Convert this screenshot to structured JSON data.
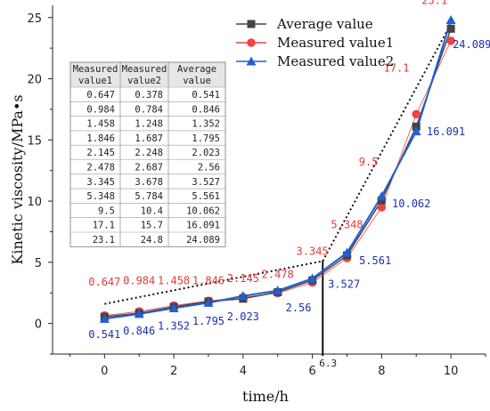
{
  "chart_data": {
    "type": "line",
    "title": "",
    "xlabel": "time/h",
    "ylabel": "Kinetic viscosity/MPa•s",
    "xlim": [
      -1.5,
      11
    ],
    "ylim": [
      -2.5,
      26
    ],
    "xticks": [
      0,
      2,
      4,
      6,
      8,
      10
    ],
    "yticks": [
      0,
      5,
      10,
      15,
      20,
      25
    ],
    "x": [
      0,
      1,
      2,
      3,
      4,
      5,
      6,
      7,
      8,
      9,
      10
    ],
    "series": [
      {
        "name": "Average value",
        "color": "#444444",
        "marker": "square",
        "values": [
          0.541,
          0.846,
          1.352,
          1.795,
          2.023,
          2.56,
          3.527,
          5.561,
          10.062,
          16.091,
          24.089
        ]
      },
      {
        "name": "Measured value1",
        "color": "#ee4444",
        "marker": "circle",
        "values": [
          0.647,
          0.984,
          1.458,
          1.846,
          2.145,
          2.478,
          3.345,
          5.348,
          9.5,
          17.1,
          23.1
        ]
      },
      {
        "name": "Measured value2",
        "color": "#1f5fd8",
        "marker": "triangle",
        "values": [
          0.378,
          0.784,
          1.248,
          1.687,
          2.248,
          2.687,
          3.678,
          5.784,
          10.4,
          15.7,
          24.8
        ]
      }
    ],
    "legend_position": "top-right",
    "grid": false,
    "annotations": {
      "red_labels": [
        "0.647",
        "0.984",
        "1.458",
        "1.846",
        "2.145",
        "2.478",
        "3.345",
        "5.348",
        "9.5",
        "17.1",
        "23.1"
      ],
      "blue_labels": [
        "0.541",
        "0.846",
        "1.352",
        "1.795",
        "2.023",
        "2.56",
        "3.527",
        "5.561",
        "10.062",
        "16.091",
        "24.089"
      ],
      "marker_line": {
        "x": 6.3,
        "label": "6.3"
      },
      "trend_lines": [
        {
          "from": [
            0,
            1.6
          ],
          "to": [
            6.3,
            5.1
          ]
        },
        {
          "from": [
            6.3,
            5.1
          ],
          "to": [
            10,
            24.5
          ]
        }
      ]
    },
    "table": {
      "headers": [
        [
          "Measured",
          "value1"
        ],
        [
          "Measured",
          "value2"
        ],
        [
          "Average",
          "value"
        ]
      ],
      "rows": [
        [
          "0.647",
          "0.378",
          "0.541"
        ],
        [
          "0.984",
          "0.784",
          "0.846"
        ],
        [
          "1.458",
          "1.248",
          "1.352"
        ],
        [
          "1.846",
          "1.687",
          "1.795"
        ],
        [
          "2.145",
          "2.248",
          "2.023"
        ],
        [
          "2.478",
          "2.687",
          "2.56"
        ],
        [
          "3.345",
          "3.678",
          "3.527"
        ],
        [
          "5.348",
          "5.784",
          "5.561"
        ],
        [
          "9.5",
          "10.4",
          "10.062"
        ],
        [
          "17.1",
          "15.7",
          "16.091"
        ],
        [
          "23.1",
          "24.8",
          "24.089"
        ]
      ]
    }
  }
}
